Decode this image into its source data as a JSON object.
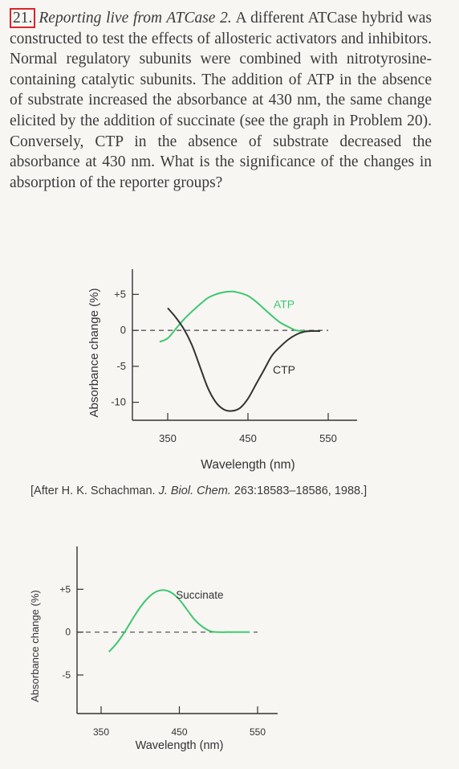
{
  "problem": {
    "number": "21.",
    "title": "Reporting live from ATCase 2.",
    "text": " A different ATCase hybrid was constructed to test the effects of allosteric activators and inhibitors. Normal regulatory subunits were combined with nitrotyrosine-containing catalytic subunits. The addition of ATP in the absence of substrate increased the absorbance at 430 nm, the same change elicited by the addition of succinate (see the graph in Problem 20). Conversely, CTP in the absence of substrate decreased the absorbance at 430 nm. What is the significance of the changes in absorption of the reporter groups?"
  },
  "caption": {
    "prefix": "[After H. K. Schachman. ",
    "journal": "J. Biol. Chem.",
    "suffix": " 263:18583–18586, 1988.]"
  },
  "colors": {
    "green": "#3ec76f",
    "dark": "#333333"
  },
  "chart_data": [
    {
      "type": "line",
      "title": "",
      "xlabel": "Wavelength (nm)",
      "ylabel": "Absorbance change (%)",
      "xlim": [
        330,
        560
      ],
      "ylim": [
        -12.5,
        8.5
      ],
      "xticks": [
        {
          "v": 350,
          "label": "350"
        },
        {
          "v": 450,
          "label": "450"
        },
        {
          "v": 550,
          "label": "550"
        }
      ],
      "yticks": [
        {
          "v": 5,
          "label": "+5"
        },
        {
          "v": 0,
          "label": "0"
        },
        {
          "v": -5,
          "label": "-5"
        },
        {
          "v": -10,
          "label": "-10"
        }
      ],
      "zero_line": true,
      "series": [
        {
          "name": "ATP",
          "color": "#3ec76f",
          "points": [
            [
              340,
              -1.6
            ],
            [
              350,
              -1.1
            ],
            [
              360,
              0.2
            ],
            [
              370,
              1.5
            ],
            [
              380,
              2.6
            ],
            [
              390,
              3.6
            ],
            [
              400,
              4.5
            ],
            [
              410,
              5.0
            ],
            [
              420,
              5.3
            ],
            [
              430,
              5.4
            ],
            [
              440,
              5.2
            ],
            [
              450,
              4.8
            ],
            [
              460,
              4.0
            ],
            [
              470,
              3.0
            ],
            [
              480,
              2.0
            ],
            [
              490,
              1.1
            ],
            [
              500,
              0.5
            ],
            [
              510,
              0.0
            ],
            [
              520,
              -0.1
            ],
            [
              530,
              -0.1
            ],
            [
              540,
              -0.1
            ]
          ]
        },
        {
          "name": "CTP",
          "color": "#333333",
          "points": [
            [
              350,
              3.1
            ],
            [
              360,
              1.8
            ],
            [
              370,
              0.2
            ],
            [
              380,
              -2.0
            ],
            [
              390,
              -5.0
            ],
            [
              400,
              -8.0
            ],
            [
              410,
              -10.0
            ],
            [
              420,
              -11.0
            ],
            [
              430,
              -11.2
            ],
            [
              440,
              -10.8
            ],
            [
              450,
              -9.5
            ],
            [
              460,
              -7.5
            ],
            [
              470,
              -5.5
            ],
            [
              480,
              -3.5
            ],
            [
              490,
              -2.3
            ],
            [
              500,
              -1.3
            ],
            [
              510,
              -0.6
            ],
            [
              520,
              -0.2
            ],
            [
              530,
              -0.1
            ],
            [
              540,
              -0.1
            ]
          ]
        }
      ],
      "labels": [
        {
          "text": "ATP",
          "x": 495,
          "y": 3.1,
          "color": "#3ec76f"
        },
        {
          "text": "CTP",
          "x": 495,
          "y": -6.0,
          "color": "#333333"
        }
      ]
    },
    {
      "type": "line",
      "title": "",
      "xlabel": "Wavelength (nm)",
      "ylabel": "Absorbance change (%)",
      "xlim": [
        340,
        560
      ],
      "ylim": [
        -9.5,
        10
      ],
      "xticks": [
        {
          "v": 350,
          "label": "350"
        },
        {
          "v": 450,
          "label": "450"
        },
        {
          "v": 550,
          "label": "550"
        }
      ],
      "yticks": [
        {
          "v": 5,
          "label": "+5"
        },
        {
          "v": 0,
          "label": "0"
        },
        {
          "v": -5,
          "label": "-5"
        }
      ],
      "zero_line": true,
      "series": [
        {
          "name": "Succinate",
          "color": "#3ec76f",
          "points": [
            [
              360,
              -2.3
            ],
            [
              370,
              -1.3
            ],
            [
              380,
              0.0
            ],
            [
              390,
              1.5
            ],
            [
              400,
              2.9
            ],
            [
              410,
              4.0
            ],
            [
              420,
              4.7
            ],
            [
              430,
              4.9
            ],
            [
              440,
              4.6
            ],
            [
              450,
              3.8
            ],
            [
              460,
              2.6
            ],
            [
              470,
              1.4
            ],
            [
              480,
              0.6
            ],
            [
              490,
              0.1
            ],
            [
              500,
              0.0
            ],
            [
              510,
              0.0
            ],
            [
              520,
              0.0
            ],
            [
              530,
              0.0
            ],
            [
              540,
              0.0
            ]
          ]
        }
      ],
      "labels": [
        {
          "text": "Succinate",
          "x": 476,
          "y": 3.9,
          "color": "#333333"
        }
      ]
    }
  ]
}
